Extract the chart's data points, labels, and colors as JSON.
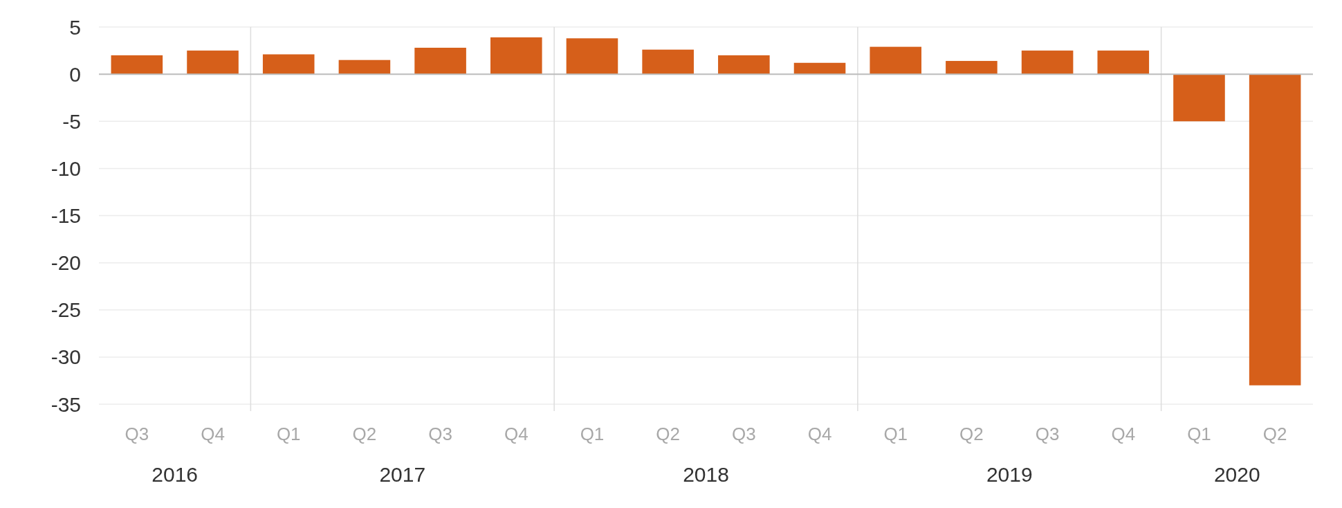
{
  "chart_data": {
    "type": "bar",
    "categories": [
      "Q3",
      "Q4",
      "Q1",
      "Q2",
      "Q3",
      "Q4",
      "Q1",
      "Q2",
      "Q3",
      "Q4",
      "Q1",
      "Q2",
      "Q3",
      "Q4",
      "Q1",
      "Q2"
    ],
    "values": [
      2.0,
      2.5,
      2.1,
      1.5,
      2.8,
      3.9,
      3.8,
      2.6,
      2.0,
      1.2,
      2.9,
      1.4,
      2.5,
      2.5,
      -5.0,
      -33.0
    ],
    "color": "#d65f1a",
    "ylim": [
      -35,
      5
    ],
    "yticks": [
      5,
      0,
      -5,
      -10,
      -15,
      -20,
      -25,
      -30,
      -35
    ],
    "grid": "y",
    "annotations": [
      "2016",
      "2017",
      "2018",
      "2019",
      "2020"
    ]
  }
}
